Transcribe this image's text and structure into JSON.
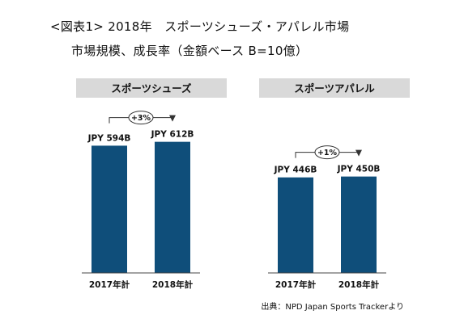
{
  "header": {
    "title_line1": "<図表1> 2018年　スポーツシューズ・アパレル市場",
    "title_line2": "市場規模、成長率（金額ベース B=10億）"
  },
  "source_note": "出典：NPD Japan Sports Trackerより",
  "colors": {
    "bar": "#0f4e7a",
    "panel_header": "#d9d9d9",
    "axis": "#444444"
  },
  "chart_data": [
    {
      "type": "bar",
      "title": "スポーツシューズ",
      "categories": [
        "2017年計",
        "2018年計"
      ],
      "values": [
        594,
        612
      ],
      "data_labels": [
        "JPY 594B",
        "JPY 612B"
      ],
      "growth_label": "+3%",
      "ylim": [
        0,
        700
      ]
    },
    {
      "type": "bar",
      "title": "スポーツアパレル",
      "categories": [
        "2017年計",
        "2018年計"
      ],
      "values": [
        446,
        450
      ],
      "data_labels": [
        "JPY 446B",
        "JPY 450B"
      ],
      "growth_label": "+1%",
      "ylim": [
        0,
        700
      ]
    }
  ]
}
